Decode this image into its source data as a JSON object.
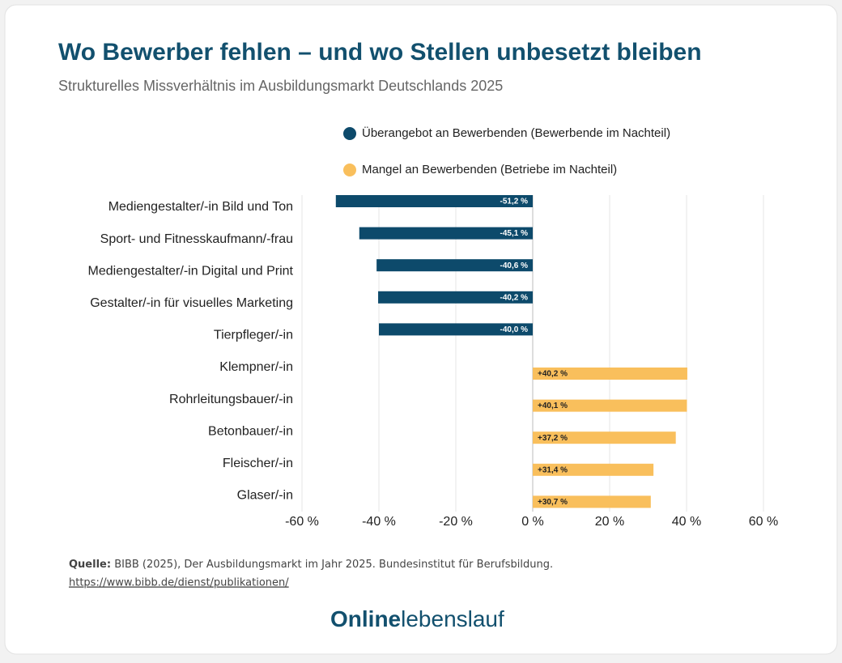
{
  "chart_data": {
    "type": "hbar",
    "title": "Wo Bewerber fehlen – und wo Stellen unbesetzt bleiben",
    "subtitle": "Strukturelles Missverhältnis im Ausbildungsmarkt Deutschlands 2025",
    "categories": [
      "Mediengestalter/-in Bild und Ton",
      "Sport- und Fitnesskaufmann/-frau",
      "Mediengestalter/-in Digital und Print",
      "Gestalter/-in für visuelles Marketing",
      "Tierpfleger/-in",
      "Klempner/-in",
      "Rohrleitungsbauer/-in",
      "Betonbauer/-in",
      "Fleischer/-in",
      "Glaser/-in"
    ],
    "series": [
      {
        "name": "Überangebot an Bewerbenden (Bewerbende im Nachteil)",
        "color": "#0d4a6b",
        "values": [
          -51.2,
          -45.1,
          -40.6,
          -40.2,
          -40.0,
          null,
          null,
          null,
          null,
          null
        ],
        "value_labels": [
          "-51,2 %",
          "-45,1 %",
          "-40,6 %",
          "-40,2 %",
          "-40,0 %",
          null,
          null,
          null,
          null,
          null
        ]
      },
      {
        "name": "Mangel an Bewerbenden (Betriebe im Nachteil)",
        "color": "#f9bf5c",
        "values": [
          null,
          null,
          null,
          null,
          null,
          40.2,
          40.1,
          37.2,
          31.4,
          30.7
        ],
        "value_labels": [
          null,
          null,
          null,
          null,
          null,
          "+40,2 %",
          "+40,1 %",
          "+37,2 %",
          "+31,4 %",
          "+30,7 %"
        ]
      }
    ],
    "xlim": [
      -60,
      60
    ],
    "xticks": [
      {
        "value": -60,
        "label": "-60 %"
      },
      {
        "value": -40,
        "label": "-40 %"
      },
      {
        "value": -20,
        "label": "-20 %"
      },
      {
        "value": 0,
        "label": "0 %"
      },
      {
        "value": 20,
        "label": "20 %"
      },
      {
        "value": 40,
        "label": "40 %"
      },
      {
        "value": 60,
        "label": "60 %"
      }
    ],
    "grid": true,
    "legend": "top"
  },
  "source": {
    "label": "Quelle:",
    "text": "BIBB (2025), Der Ausbildungsmarkt im Jahr 2025. Bundesinstitut für Berufsbildung.",
    "url": "https://www.bibb.de/dienst/publikationen/"
  },
  "logo": {
    "bold": "Online",
    "light": "lebenslauf"
  }
}
